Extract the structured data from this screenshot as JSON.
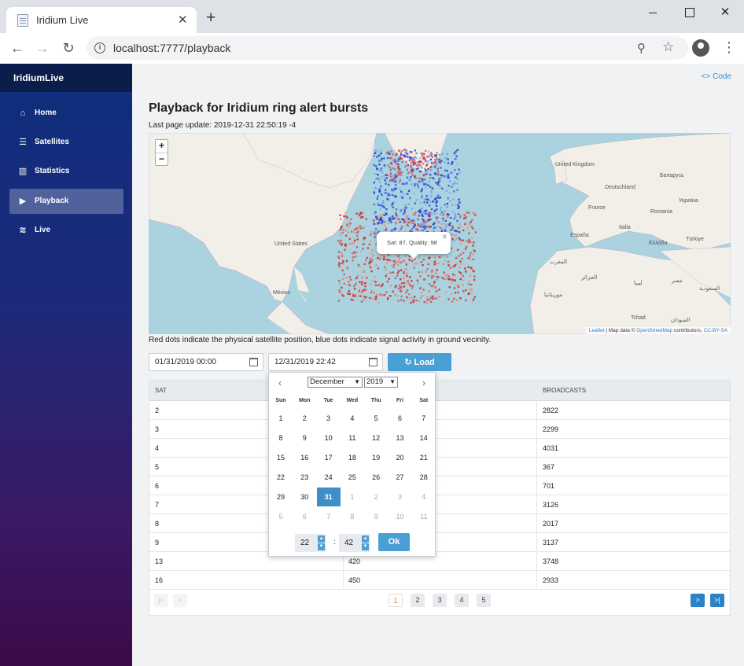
{
  "browser": {
    "tab_title": "Iridium Live",
    "url": "localhost:7777/playback"
  },
  "sidebar": {
    "brand": "IridiumLive",
    "items": [
      {
        "label": "Home",
        "icon": "home-icon",
        "active": false
      },
      {
        "label": "Satellites",
        "icon": "list-icon",
        "active": false
      },
      {
        "label": "Statistics",
        "icon": "bar-chart-icon",
        "active": false
      },
      {
        "label": "Playback",
        "icon": "play-icon",
        "active": true
      },
      {
        "label": "Live",
        "icon": "wifi-icon",
        "active": false
      }
    ]
  },
  "header": {
    "code_link": "<> Code"
  },
  "main": {
    "title": "Playback for Iridium ring alert bursts",
    "last_update": "Last page update: 2019-12-31 22:50:19 -4",
    "caption": "Red dots indicate the physical satellite position, blue dots indicate signal activity in ground vecinity."
  },
  "map": {
    "popup_text": "Sat: 87, Quality: 98",
    "zoom_in": "+",
    "zoom_out": "−",
    "attribution_leaflet": "Leaflet",
    "attribution_mid": " | Map data © ",
    "attribution_osm": "OpenStreetMap",
    "attribution_contrib": " contributors, ",
    "attribution_license": "CC-BY-SA",
    "labels": [
      "United States",
      "México",
      "United Kingdom",
      "Deutschland",
      "France",
      "España",
      "Italia",
      "Україна",
      "Беларусь",
      "Romania",
      "Türkiye",
      "Ελλάδα",
      "الجزائر",
      "ليبيا",
      "مصر",
      "Tchad",
      "السودان",
      "السعودية",
      "المغرب",
      "موريتانيا"
    ]
  },
  "filter": {
    "from_value": "01/31/2019 00:00",
    "to_value": "12/31/2019 22:42",
    "load_label": "Load"
  },
  "table": {
    "columns": [
      "SAT",
      "",
      "BROADCASTS"
    ],
    "rows": [
      {
        "sat": "2",
        "mid": "",
        "broadcasts": "2822"
      },
      {
        "sat": "3",
        "mid": "",
        "broadcasts": "2299"
      },
      {
        "sat": "4",
        "mid": "",
        "broadcasts": "4031"
      },
      {
        "sat": "5",
        "mid": "",
        "broadcasts": "367"
      },
      {
        "sat": "6",
        "mid": "",
        "broadcasts": "701"
      },
      {
        "sat": "7",
        "mid": "",
        "broadcasts": "3126"
      },
      {
        "sat": "8",
        "mid": "",
        "broadcasts": "2017"
      },
      {
        "sat": "9",
        "mid": "",
        "broadcasts": "3137"
      },
      {
        "sat": "13",
        "mid": "420",
        "broadcasts": "3748"
      },
      {
        "sat": "16",
        "mid": "450",
        "broadcasts": "2933"
      }
    ]
  },
  "pager": {
    "first": "|<",
    "prev": "<",
    "pages": [
      "1",
      "2",
      "3",
      "4",
      "5"
    ],
    "active_page": "1",
    "next": ">",
    "last": ">|"
  },
  "datepicker": {
    "month": "December",
    "year": "2019",
    "weekdays": [
      "Sun",
      "Mon",
      "Tue",
      "Wed",
      "Thu",
      "Fri",
      "Sat"
    ],
    "weeks": [
      [
        "1",
        "2",
        "3",
        "4",
        "5",
        "6",
        "7"
      ],
      [
        "8",
        "9",
        "10",
        "11",
        "12",
        "13",
        "14"
      ],
      [
        "15",
        "16",
        "17",
        "18",
        "19",
        "20",
        "21"
      ],
      [
        "22",
        "23",
        "24",
        "25",
        "26",
        "27",
        "28"
      ],
      [
        "29",
        "30",
        "31",
        "1",
        "2",
        "3",
        "4"
      ],
      [
        "5",
        "6",
        "7",
        "8",
        "9",
        "10",
        "11"
      ]
    ],
    "selected_day": "31",
    "hour": "22",
    "minute": "42",
    "ok_label": "Ok"
  },
  "colors": {
    "sidebar_top": "#0d2e7c",
    "sidebar_bottom": "#3b0a48",
    "accent": "#4a9fd5",
    "satellite_dots": "#d8262b",
    "ground_dots": "#1a3ad8"
  }
}
